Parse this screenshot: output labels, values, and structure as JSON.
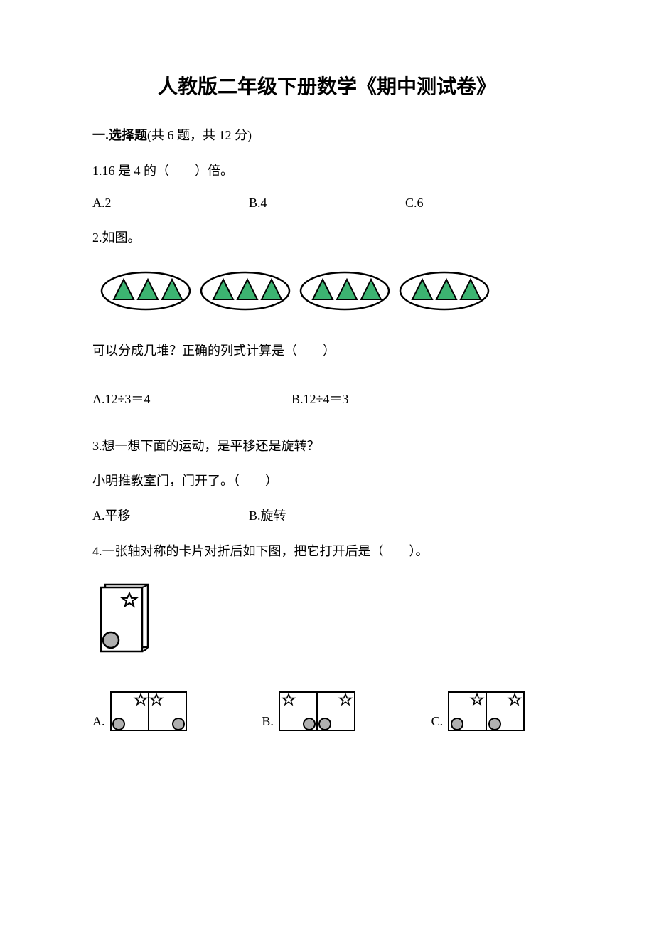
{
  "title": "人教版二年级下册数学《期中测试卷》",
  "section1": {
    "label_prefix": "一.",
    "label_name": "选择题",
    "detail": "(共 6 题，共 12 分)"
  },
  "q1": {
    "text": "1.16 是 4 的（　　）倍。",
    "optA": "A.2",
    "optB": "B.4",
    "optC": "C.6"
  },
  "q2": {
    "text": "2.如图。",
    "groups": 4,
    "per_group": 3,
    "triangle_fill": "#3cb371",
    "triangle_stroke": "#000000",
    "oval_stroke": "#000000",
    "bg": "#ffffff",
    "after_text": "可以分成几堆？正确的列式计算是（　　）",
    "optA": "A.12÷3＝4",
    "optB": "B.12÷4＝3"
  },
  "q3": {
    "text": "3.想一想下面的运动，是平移还是旋转？",
    "sub": "小明推教室门，门开了。（　　）",
    "optA": "A.平移",
    "optB": "B.旋转"
  },
  "q4": {
    "text": "4.一张轴对称的卡片对折后如下图，把它打开后是（　　）。",
    "labelA": "A.",
    "labelB": "B.",
    "labelC": "C.",
    "stroke": "#000000",
    "circle_fill": "#b0b0b0",
    "star_fill": "#ffffff"
  }
}
